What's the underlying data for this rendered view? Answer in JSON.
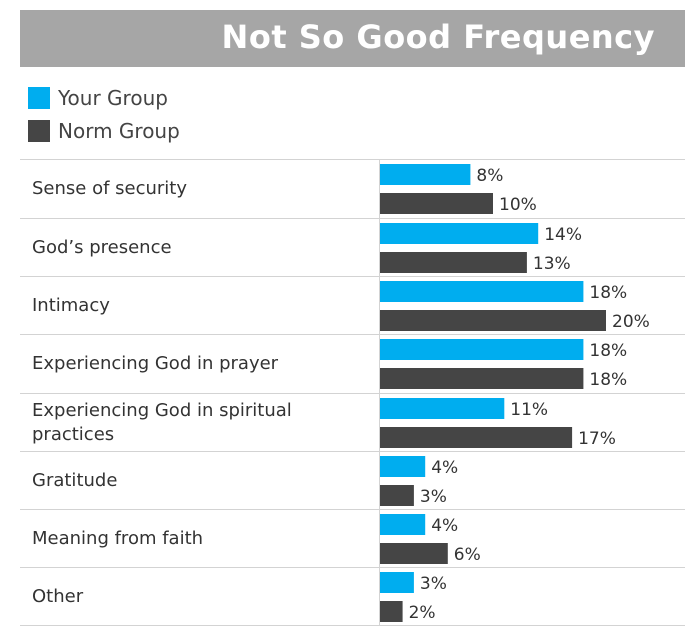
{
  "chart_data": {
    "type": "bar",
    "orientation": "horizontal",
    "title": "Not So Good Frequency",
    "legend": {
      "placement": "top-left"
    },
    "categories": [
      "Sense of security",
      "God’s presence",
      "Intimacy",
      "Experiencing God in prayer",
      "Experiencing God in spiritual practices",
      "Gratitude",
      "Meaning from faith",
      "Other"
    ],
    "series": [
      {
        "name": "Your Group",
        "color": "#00adef",
        "values": [
          8,
          14,
          18,
          18,
          11,
          4,
          4,
          3
        ]
      },
      {
        "name": "Norm Group",
        "color": "#454545",
        "values": [
          10,
          13,
          20,
          18,
          17,
          3,
          6,
          2
        ]
      }
    ],
    "value_labels": [
      [
        "8%",
        "14%",
        "18%",
        "18%",
        "11%",
        "4%",
        "4%",
        "3%"
      ],
      [
        "10%",
        "13%",
        "20%",
        "18%",
        "17%",
        "3%",
        "6%",
        "2%"
      ]
    ],
    "xlim": [
      0,
      22
    ],
    "unit": "%",
    "grid": false
  }
}
